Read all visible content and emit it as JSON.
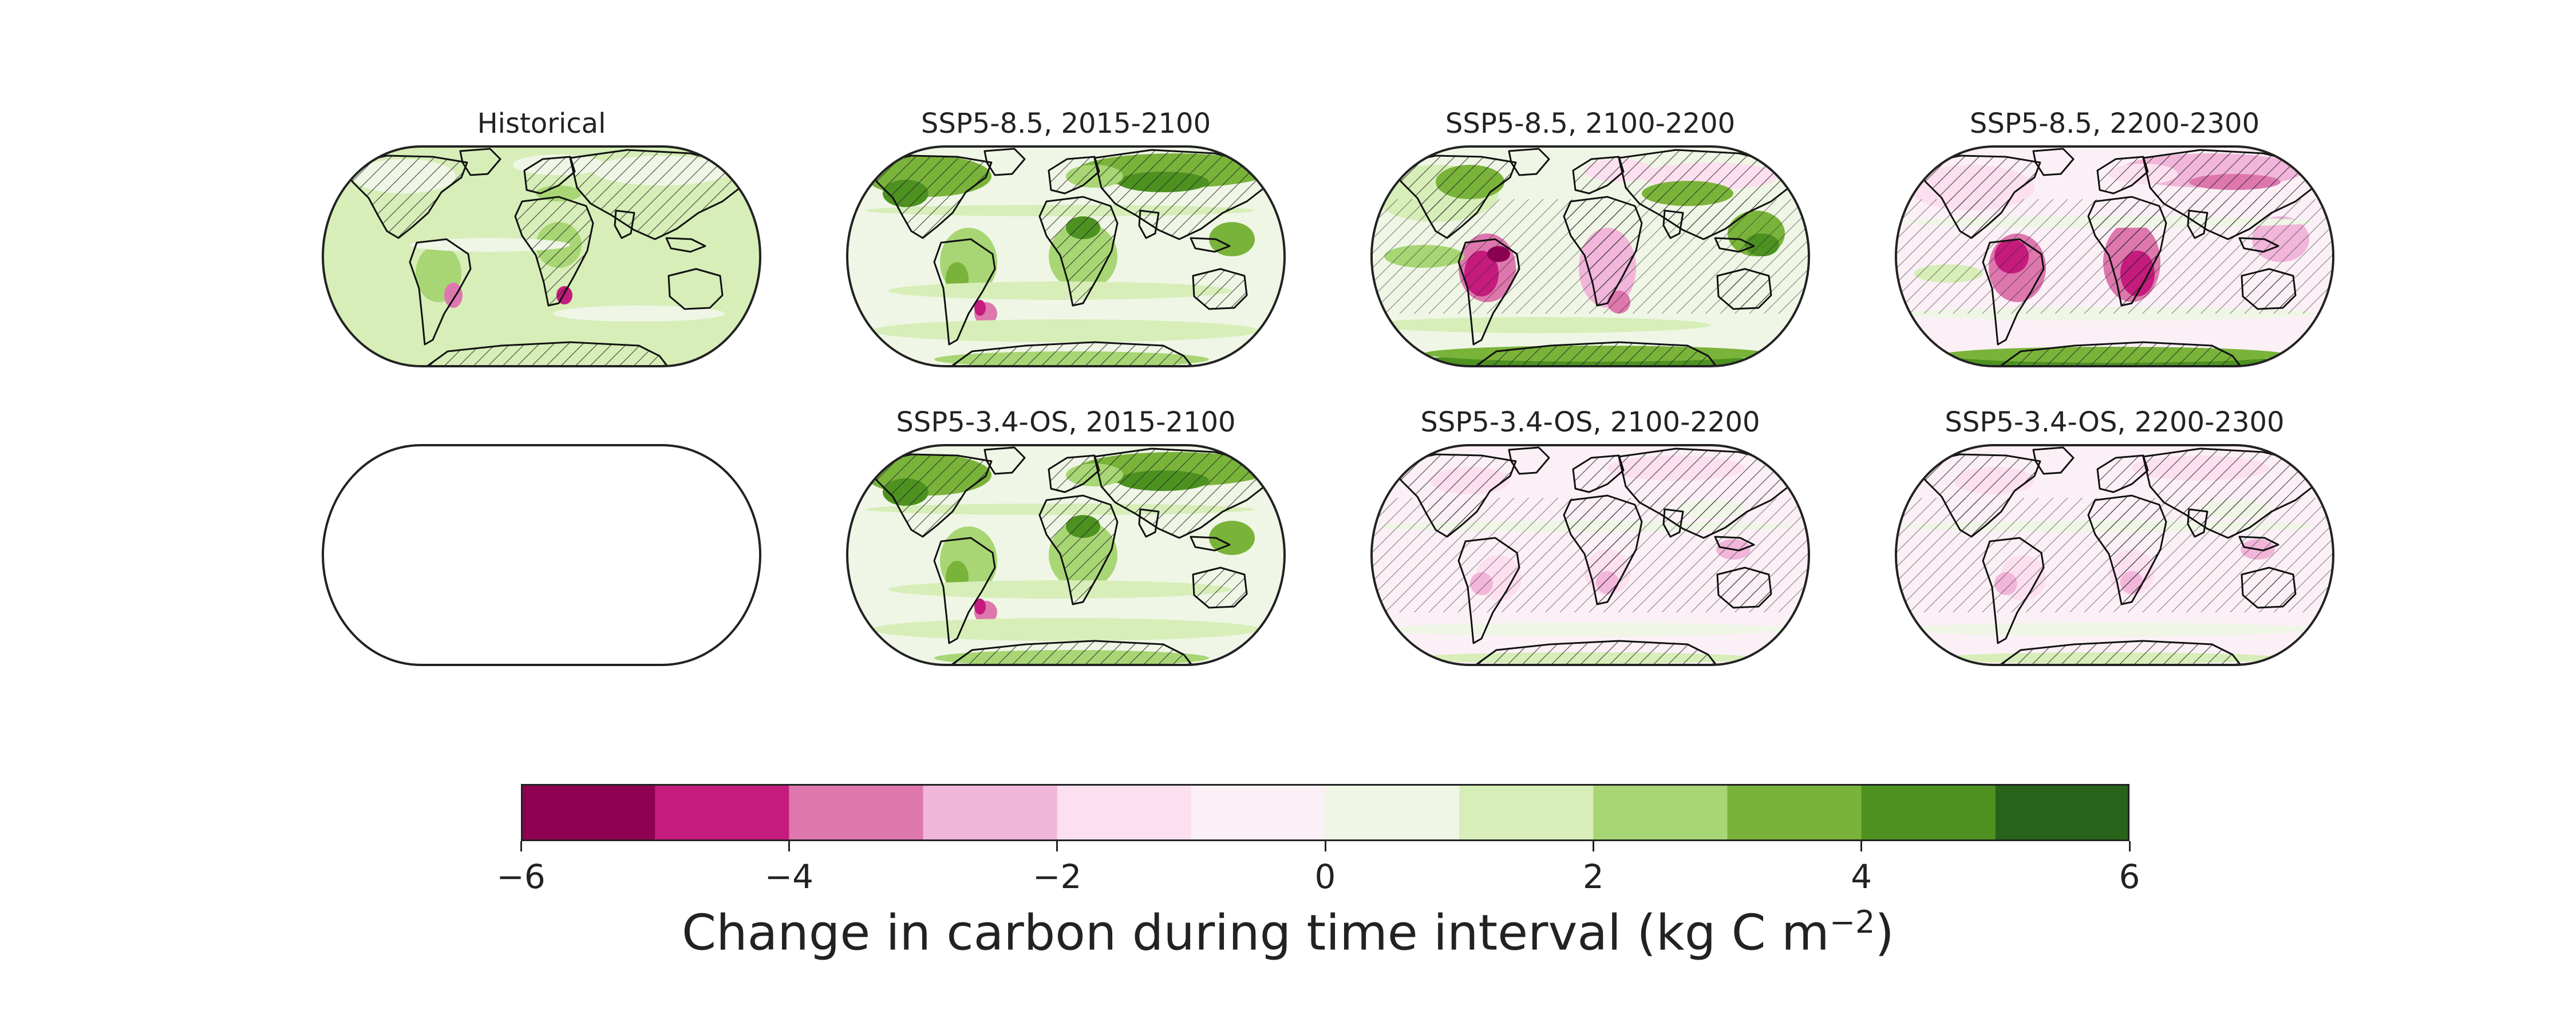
{
  "panels": [
    {
      "id": "hist",
      "title": "Historical",
      "pattern": "hist",
      "empty": false
    },
    {
      "id": "ssp585-1",
      "title": "SSP5-8.5, 2015-2100",
      "pattern": "green",
      "empty": false
    },
    {
      "id": "ssp585-2",
      "title": "SSP5-8.5, 2100-2200",
      "pattern": "mixed",
      "empty": false
    },
    {
      "id": "ssp585-3",
      "title": "SSP5-8.5, 2200-2300",
      "pattern": "pink",
      "empty": false
    },
    {
      "id": "blank",
      "title": "",
      "pattern": "none",
      "empty": true
    },
    {
      "id": "ssp534-1",
      "title": "SSP5-3.4-OS, 2015-2100",
      "pattern": "green",
      "empty": false
    },
    {
      "id": "ssp534-2",
      "title": "SSP5-3.4-OS, 2100-2200",
      "pattern": "lightpink",
      "empty": false
    },
    {
      "id": "ssp534-3",
      "title": "SSP5-3.4-OS, 2200-2300",
      "pattern": "lightpink",
      "empty": false
    }
  ],
  "colorbar": {
    "label_main": "Change in carbon during time interval (kg C m",
    "label_exp": "−2",
    "label_end": ")",
    "ticks": [
      "−6",
      "−4",
      "−2",
      "0",
      "2",
      "4",
      "6"
    ],
    "range": [
      -6,
      6
    ],
    "colors": [
      "#8e0152",
      "#c51b7d",
      "#de77ae",
      "#f1b6da",
      "#fde0ef",
      "#fbf0f6",
      "#eff6e6",
      "#d7eeb8",
      "#a8d674",
      "#7ab33a",
      "#4d9221",
      "#276419"
    ]
  }
}
